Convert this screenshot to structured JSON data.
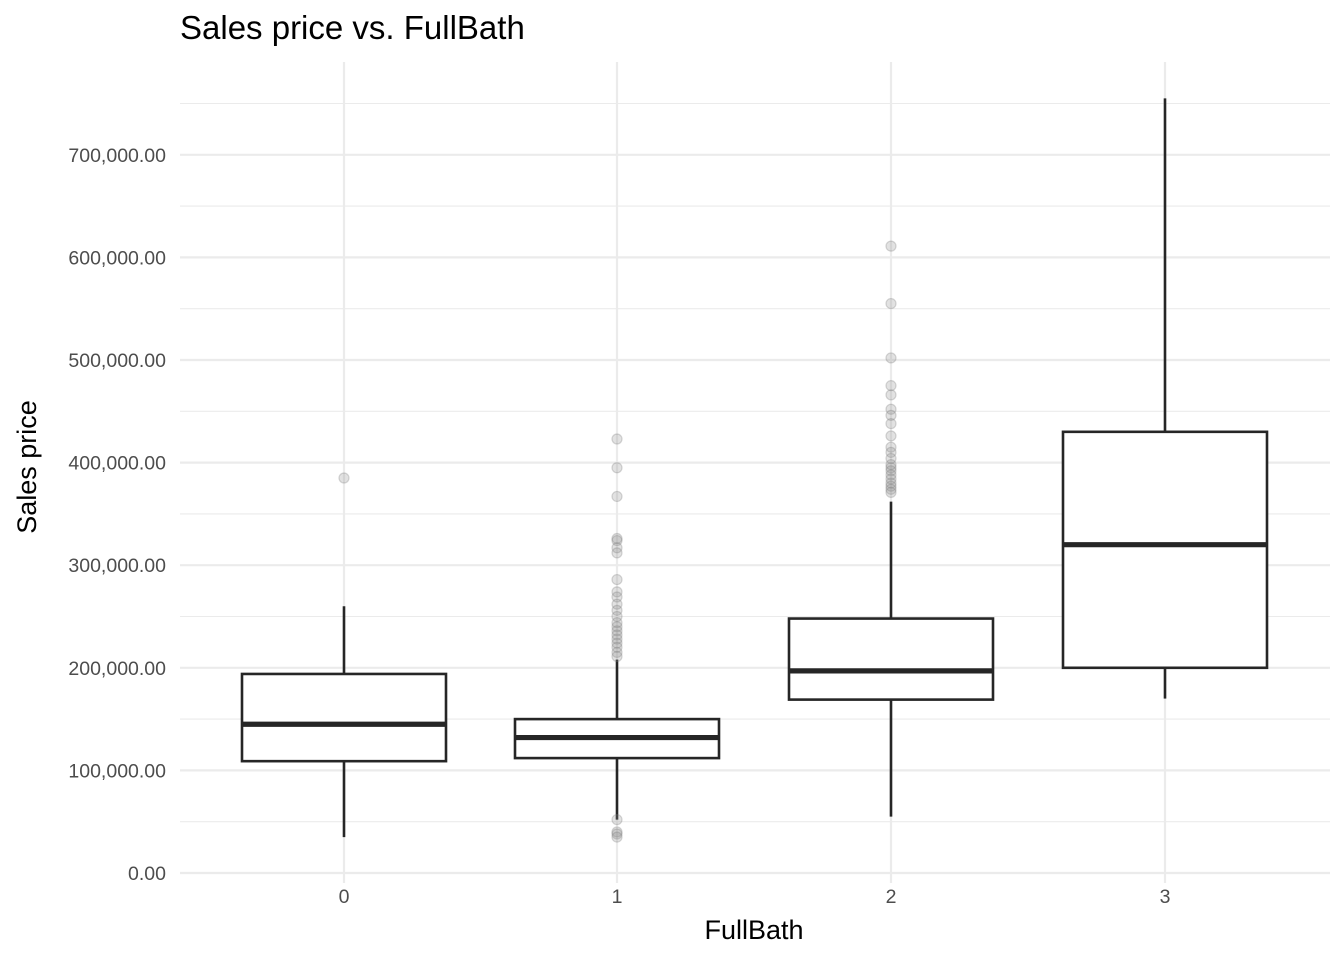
{
  "chart_data": {
    "type": "boxplot",
    "title": "Sales price vs. FullBath",
    "xlabel": "FullBath",
    "ylabel": "Sales price",
    "categories": [
      "0",
      "1",
      "2",
      "3"
    ],
    "ylim": [
      0,
      790000
    ],
    "y_ticks": [
      0,
      100000,
      200000,
      300000,
      400000,
      500000,
      600000,
      700000
    ],
    "y_tick_labels": [
      "0.00",
      "100,000.00",
      "200,000.00",
      "300,000.00",
      "400,000.00",
      "500,000.00",
      "600,000.00",
      "700,000.00"
    ],
    "grid": true,
    "legend": "none",
    "boxes": [
      {
        "category": "0",
        "whisker_low": 35000,
        "q1": 109000,
        "median": 145000,
        "q3": 194000,
        "whisker_high": 260000,
        "outliers": [
          385000
        ]
      },
      {
        "category": "1",
        "whisker_low": 52000,
        "q1": 112000,
        "median": 132000,
        "q3": 150000,
        "whisker_high": 208000,
        "outliers": [
          423000,
          395000,
          367000,
          326000,
          324000,
          317000,
          312000,
          286000,
          274000,
          269000,
          262000,
          256000,
          250000,
          244000,
          240000,
          236000,
          232000,
          228000,
          224000,
          220000,
          215000,
          211000,
          52000,
          40000,
          38000,
          35000
        ]
      },
      {
        "category": "2",
        "whisker_low": 55000,
        "q1": 169000,
        "median": 197000,
        "q3": 248000,
        "whisker_high": 362000,
        "outliers": [
          611000,
          555000,
          502000,
          475000,
          466000,
          452000,
          446000,
          438000,
          426000,
          415000,
          410000,
          404000,
          398000,
          395000,
          392000,
          388000,
          384000,
          380000,
          377000,
          374000,
          371000
        ]
      },
      {
        "category": "3",
        "whisker_low": 170000,
        "q1": 200000,
        "median": 320000,
        "q3": 430000,
        "whisker_high": 755000,
        "outliers": []
      }
    ]
  }
}
